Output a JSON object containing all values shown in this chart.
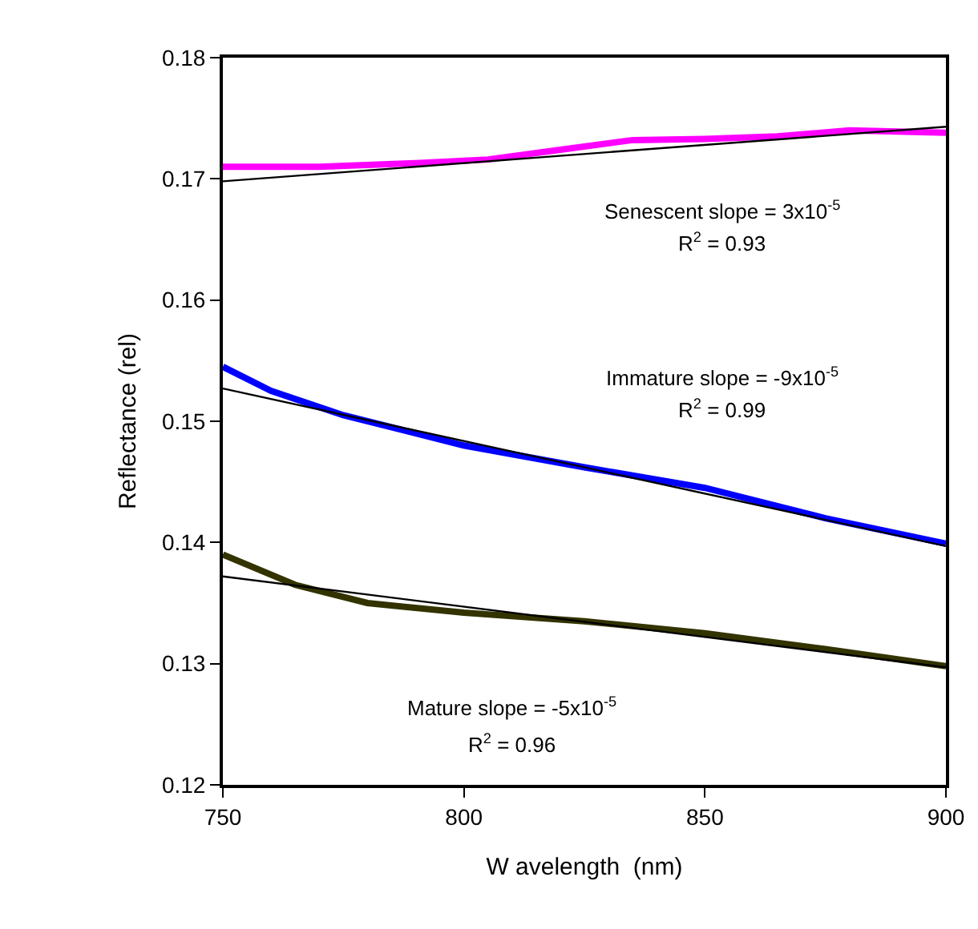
{
  "chart_data": {
    "type": "line",
    "xlabel": "W avelength  (nm)",
    "ylabel": "Reflectance (rel)",
    "xlim": [
      750,
      900
    ],
    "xticks": [
      750,
      800,
      850,
      900
    ],
    "ylim": [
      0.12,
      0.18
    ],
    "yticks": [
      0.12,
      0.13,
      0.14,
      0.15,
      0.16,
      0.17,
      0.18
    ],
    "grid": false,
    "marker": "none",
    "line_style": "solid",
    "series": [
      {
        "color": "#ff00ff",
        "x": [
          750,
          770,
          790,
          805,
          820,
          835,
          850,
          865,
          880,
          900
        ],
        "values": [
          0.171,
          0.171,
          0.1713,
          0.1716,
          0.1724,
          0.1732,
          0.1733,
          0.1735,
          0.174,
          0.1738
        ]
      },
      {
        "color": "#0000ff",
        "x": [
          750,
          760,
          775,
          800,
          825,
          850,
          875,
          900
        ],
        "values": [
          0.1545,
          0.1525,
          0.1505,
          0.148,
          0.1462,
          0.1445,
          0.142,
          0.1399
        ]
      },
      {
        "color": "#333300",
        "x": [
          750,
          765,
          780,
          800,
          825,
          850,
          875,
          900
        ],
        "values": [
          0.139,
          0.1365,
          0.135,
          0.1342,
          0.1335,
          0.1325,
          0.1312,
          0.1298
        ]
      },
      {
        "type": "line",
        "color": "#000000",
        "x": [
          750,
          900
        ],
        "values": [
          0.1698,
          0.1743
        ]
      },
      {
        "type": "line",
        "color": "#000000",
        "x": [
          750,
          900
        ],
        "values": [
          0.1527,
          0.1397
        ]
      },
      {
        "type": "line",
        "color": "#000000",
        "x": [
          750,
          900
        ],
        "values": [
          0.1372,
          0.1297
        ]
      }
    ],
    "annotations": [
      "Senescent slope = 3x10$^{-5}$",
      "R$^{2}$ = 0.93",
      "Immature slope = -9x10$^{-5}$",
      "R$^{2}$ = 0.99",
      "Mature slope = -5x10$^{-5}$",
      "R$^{2}$ = 0.96"
    ]
  }
}
